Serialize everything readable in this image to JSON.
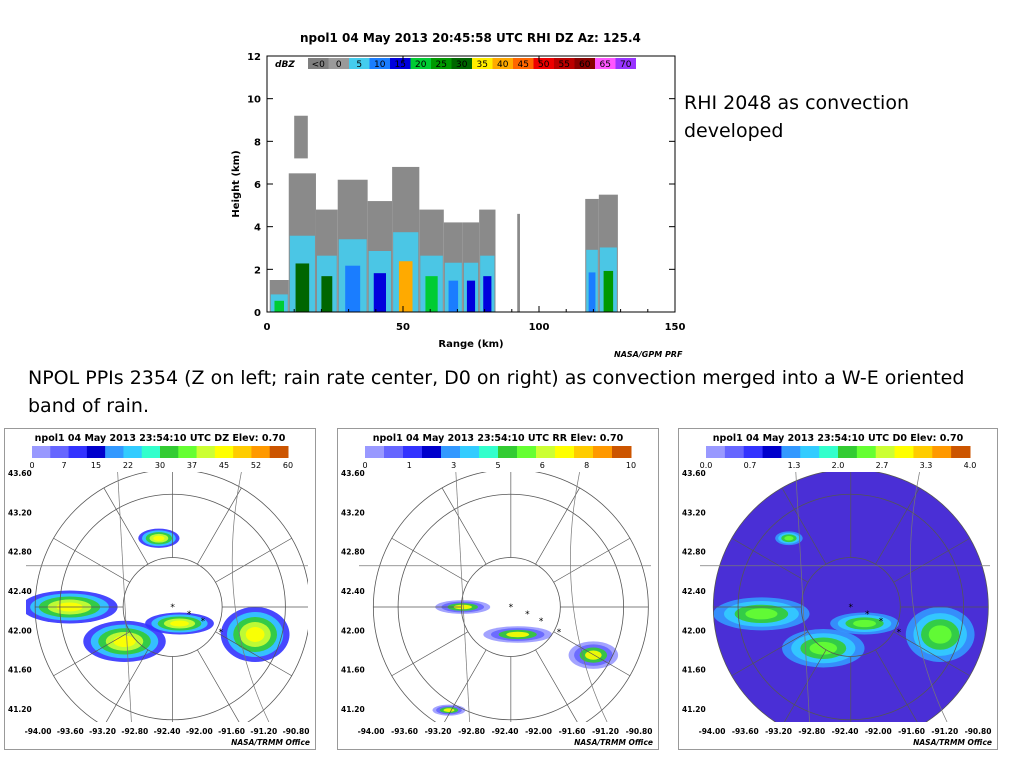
{
  "rhi": {
    "title": "npol1  04 May 2013 20:45:58 UTC  RHI  DZ  Az: 125.4",
    "unit": "dBZ",
    "scale_labels": [
      "<0",
      "0",
      "5",
      "10",
      "15",
      "20",
      "25",
      "30",
      "35",
      "40",
      "45",
      "50",
      "55",
      "60",
      "65",
      "70"
    ],
    "scale_colors": [
      "#7f7f7f",
      "#9a9a9a",
      "#44ccee",
      "#1a7dff",
      "#0000dd",
      "#00cc33",
      "#009900",
      "#006600",
      "#ffee00",
      "#ffaa00",
      "#ff6600",
      "#ee0000",
      "#bb0000",
      "#880000",
      "#ff55ff",
      "#9933ff"
    ],
    "credit": "NASA/GPM PRF"
  },
  "notes": {
    "rhi_note": "RHI 2048 as convection developed",
    "ppi_note": "NPOL PPIs 2354 (Z on left; rain rate center, D0 on right) as convection merged into a W-E oriented band of rain."
  },
  "ppis": [
    {
      "title": "npol1  04 May 2013 23:54:10 UTC  DZ  Elev: 0.70",
      "scale_labels": [
        "0",
        "7",
        "15",
        "22",
        "30",
        "37",
        "45",
        "52",
        "60"
      ],
      "scale_colors": [
        "#9999ff",
        "#6666ff",
        "#3333ff",
        "#0000cc",
        "#3399ff",
        "#33ccff",
        "#33ffcc",
        "#33cc33",
        "#66ff33",
        "#ccff33",
        "#ffff00",
        "#ffcc00",
        "#ff9900",
        "#cc5500"
      ],
      "lat_labels": [
        "43.60",
        "43.20",
        "42.80",
        "42.40",
        "42.00",
        "41.60",
        "41.20"
      ],
      "lon_labels": [
        "-94.00",
        "-93.60",
        "-93.20",
        "-92.80",
        "-92.40",
        "-92.00",
        "-91.60",
        "-91.20",
        "-90.80"
      ],
      "credit": "NASA/TRMM Office"
    },
    {
      "title": "npol1  04 May 2013 23:54:10 UTC  RR  Elev: 0.70",
      "scale_labels": [
        "0",
        "1",
        "3",
        "5",
        "6",
        "8",
        "10"
      ],
      "scale_colors": [
        "#9999ff",
        "#6666ff",
        "#3333ff",
        "#0000cc",
        "#3399ff",
        "#33ccff",
        "#33ffcc",
        "#33cc33",
        "#66ff33",
        "#ccff33",
        "#ffff00",
        "#ffcc00",
        "#ff9900",
        "#cc5500"
      ],
      "lat_labels": [
        "43.60",
        "43.20",
        "42.80",
        "42.40",
        "42.00",
        "41.60",
        "41.20"
      ],
      "lon_labels": [
        "-94.00",
        "-93.60",
        "-93.20",
        "-92.80",
        "-92.40",
        "-92.00",
        "-91.60",
        "-91.20",
        "-90.80"
      ],
      "credit": "NASA/TRMM Office"
    },
    {
      "title": "npol1  04 May 2013 23:54:10 UTC  D0  Elev: 0.70",
      "scale_labels": [
        "0.0",
        "0.7",
        "1.3",
        "2.0",
        "2.7",
        "3.3",
        "4.0"
      ],
      "scale_colors": [
        "#9999ff",
        "#6666ff",
        "#3333ff",
        "#0000cc",
        "#3399ff",
        "#33ccff",
        "#33ffcc",
        "#33cc33",
        "#66ff33",
        "#ccff33",
        "#ffff00",
        "#ffcc00",
        "#ff9900",
        "#cc5500"
      ],
      "lat_labels": [
        "43.60",
        "43.20",
        "42.80",
        "42.40",
        "42.00",
        "41.60",
        "41.20"
      ],
      "lon_labels": [
        "-94.00",
        "-93.60",
        "-93.20",
        "-92.80",
        "-92.40",
        "-92.00",
        "-91.60",
        "-91.20",
        "-90.80"
      ],
      "credit": "NASA/TRMM Office"
    }
  ],
  "chart_data": [
    {
      "type": "heatmap",
      "title": "npol1  04 May 2013 20:45:58 UTC  RHI  DZ  Az: 125.4",
      "xlabel": "Range (km)",
      "ylabel": "Height (km)",
      "xlim": [
        0,
        150
      ],
      "ylim": [
        0,
        12
      ],
      "x_ticks": [
        0,
        50,
        100,
        150
      ],
      "y_ticks": [
        0,
        2,
        4,
        6,
        8,
        10,
        12
      ],
      "colorbar_unit": "dBZ",
      "echo_columns": [
        {
          "x0": 1,
          "x1": 8,
          "top": 1.5,
          "peak_dbz": 20
        },
        {
          "x0": 8,
          "x1": 18,
          "top": 6.5,
          "peak_dbz": 30
        },
        {
          "x0": 10,
          "x1": 15,
          "top": 9.2,
          "base": 7.2,
          "peak_dbz": 0
        },
        {
          "x0": 18,
          "x1": 26,
          "top": 4.8,
          "peak_dbz": 30
        },
        {
          "x0": 26,
          "x1": 37,
          "top": 6.2,
          "peak_dbz": 10
        },
        {
          "x0": 37,
          "x1": 46,
          "top": 5.2,
          "peak_dbz": 15
        },
        {
          "x0": 46,
          "x1": 56,
          "top": 6.8,
          "peak_dbz": 40
        },
        {
          "x0": 56,
          "x1": 65,
          "top": 4.8,
          "peak_dbz": 20
        },
        {
          "x0": 65,
          "x1": 72,
          "top": 4.2,
          "peak_dbz": 10
        },
        {
          "x0": 72,
          "x1": 78,
          "top": 4.2,
          "peak_dbz": 15
        },
        {
          "x0": 78,
          "x1": 84,
          "top": 4.8,
          "peak_dbz": 15
        },
        {
          "x0": 92,
          "x1": 93,
          "top": 4.6,
          "peak_dbz": 0
        },
        {
          "x0": 117,
          "x1": 122,
          "top": 5.3,
          "peak_dbz": 10
        },
        {
          "x0": 122,
          "x1": 129,
          "top": 5.5,
          "peak_dbz": 25
        }
      ]
    },
    {
      "type": "heatmap",
      "title": "npol1  04 May 2013 23:54:10 UTC  DZ  Elev: 0.70",
      "field": "DZ",
      "colorbar_ticks": [
        0,
        7,
        15,
        22,
        30,
        37,
        45,
        52,
        60
      ],
      "lat_ticks": [
        43.6,
        43.2,
        42.8,
        42.4,
        42.0,
        41.6,
        41.2
      ],
      "lon_ticks": [
        -94.0,
        -93.6,
        -93.2,
        -92.8,
        -92.4,
        -92.0,
        -91.6,
        -91.2,
        -90.8
      ]
    },
    {
      "type": "heatmap",
      "title": "npol1  04 May 2013 23:54:10 UTC  RR  Elev: 0.70",
      "field": "RR",
      "colorbar_ticks": [
        0,
        1,
        3,
        5,
        6,
        8,
        10
      ],
      "lat_ticks": [
        43.6,
        43.2,
        42.8,
        42.4,
        42.0,
        41.6,
        41.2
      ],
      "lon_ticks": [
        -94.0,
        -93.6,
        -93.2,
        -92.8,
        -92.4,
        -92.0,
        -91.6,
        -91.2,
        -90.8
      ]
    },
    {
      "type": "heatmap",
      "title": "npol1  04 May 2013 23:54:10 UTC  D0  Elev: 0.70",
      "field": "D0",
      "colorbar_ticks": [
        0.0,
        0.7,
        1.3,
        2.0,
        2.7,
        3.3,
        4.0
      ],
      "lat_ticks": [
        43.6,
        43.2,
        42.8,
        42.4,
        42.0,
        41.6,
        41.2
      ],
      "lon_ticks": [
        -94.0,
        -93.6,
        -93.2,
        -92.8,
        -92.4,
        -92.0,
        -91.6,
        -91.2,
        -90.8
      ]
    }
  ]
}
